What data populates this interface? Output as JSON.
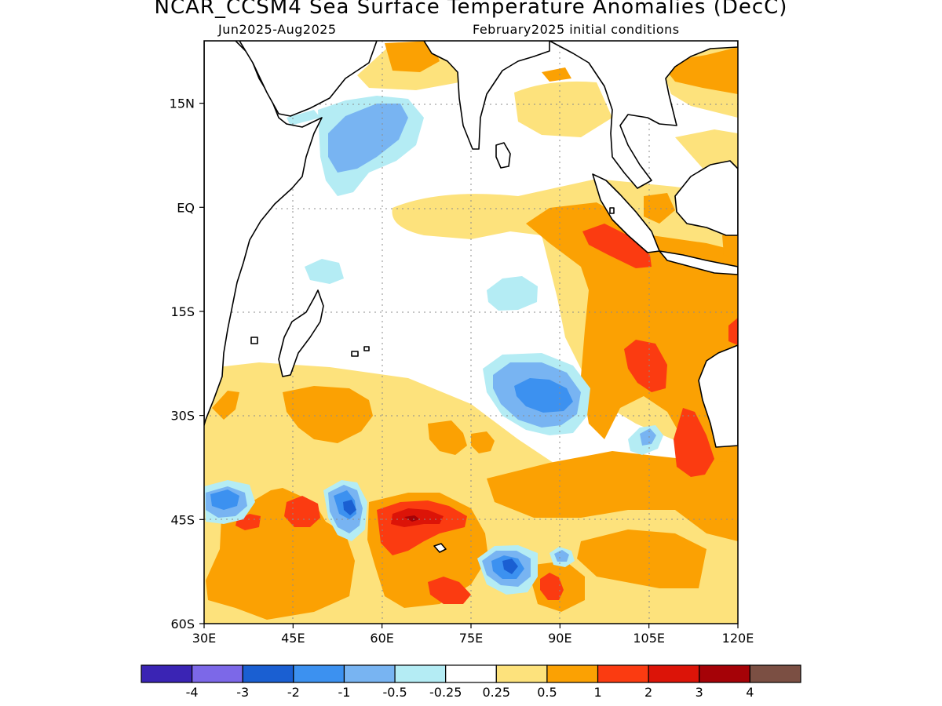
{
  "header": {
    "title": "NCAR_CCSM4 Sea Surface Temperature Anomalies (DecC)",
    "period": "Jun2025-Aug2025",
    "init": "February2025 initial conditions"
  },
  "map": {
    "lat_labels": [
      "15N",
      "EQ",
      "15S",
      "30S",
      "45S",
      "60S"
    ],
    "lat_values": [
      15,
      0,
      -15,
      -30,
      -45,
      -60
    ],
    "lon_labels": [
      "30E",
      "45E",
      "60E",
      "75E",
      "90E",
      "105E",
      "120E"
    ],
    "lon_values": [
      30,
      45,
      60,
      75,
      90,
      105,
      120
    ],
    "lat_range": [
      -60,
      24
    ],
    "lon_range": [
      30,
      120
    ]
  },
  "colorbar": {
    "colors": [
      "#3a24b4",
      "#7c68e8",
      "#1a5fd2",
      "#3c91f0",
      "#78b4f2",
      "#b4ecf4",
      "#ffffff",
      "#fde27c",
      "#fba103",
      "#fb3b11",
      "#dc1408",
      "#a50207",
      "#7b4f43"
    ],
    "labels": [
      "-4",
      "-3",
      "-2",
      "-1",
      "-0.5",
      "-0.25",
      "0.25",
      "0.5",
      "1",
      "2",
      "3",
      "4"
    ]
  },
  "palette": {
    "neg2": "#1a5fd2",
    "neg1": "#3c91f0",
    "neg05": "#78b4f2",
    "neg025": "#b4ecf4",
    "pos025": "#fde27c",
    "pos05": "#fba103",
    "pos1": "#fb3b11",
    "pos2": "#dc1408",
    "pos3": "#a50207"
  }
}
